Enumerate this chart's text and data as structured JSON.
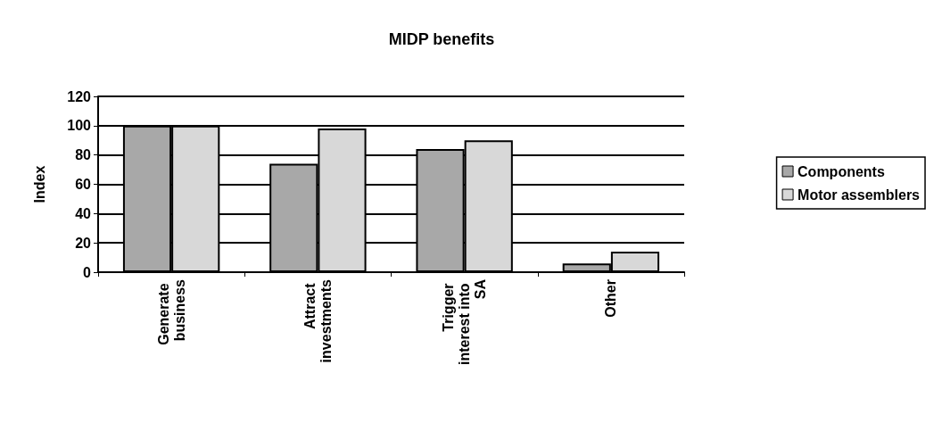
{
  "chart_data": {
    "type": "bar",
    "title": "MIDP benefits",
    "ylabel": "Index",
    "categories": [
      "Generate business",
      "Attract investments",
      "Trigger interest into SA",
      "Other"
    ],
    "series": [
      {
        "name": "Components",
        "color": "#a8a8a8",
        "values": [
          100,
          74,
          84,
          6
        ]
      },
      {
        "name": "Motor assemblers",
        "color": "#d8d8d8",
        "values": [
          100,
          98,
          90,
          14
        ]
      }
    ],
    "ylim": [
      0,
      120
    ],
    "yticks": [
      0,
      20,
      40,
      60,
      80,
      100,
      120
    ],
    "grid": "y",
    "legend": "right"
  }
}
